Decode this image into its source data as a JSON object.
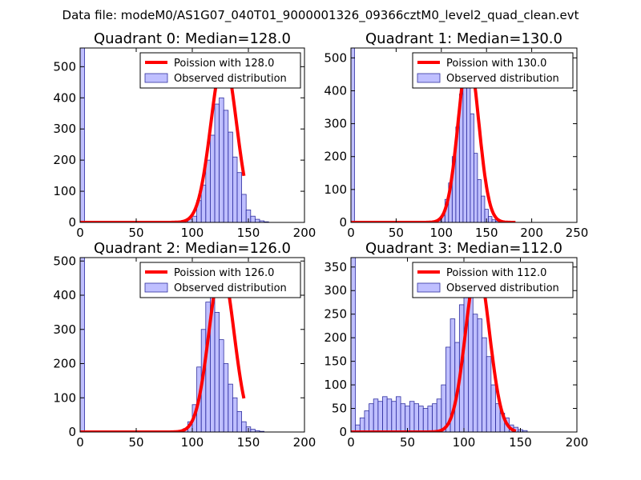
{
  "suptitle": "Data file: modeM0/AS1G07_040T01_9000001326_09366cztM0_level2_quad_clean.evt",
  "colors": {
    "poisson": "#ff0000",
    "bars": "#8080ff",
    "bar_edge": "#3030a0",
    "axis": "#000000"
  },
  "chart_data": [
    {
      "type": "bar",
      "title": "Quadrant 0: Median=128.0",
      "xlim": [
        0,
        200
      ],
      "ylim": [
        0,
        560
      ],
      "xticks": [
        0,
        50,
        100,
        150,
        200
      ],
      "yticks": [
        0,
        100,
        200,
        300,
        400,
        500
      ],
      "bin_width": 4,
      "bins_start": 84,
      "counts": [
        2,
        3,
        5,
        10,
        20,
        70,
        120,
        200,
        280,
        380,
        400,
        360,
        290,
        210,
        160,
        90,
        40,
        20,
        10,
        5,
        2
      ],
      "first_bin_spike": 560,
      "poisson_mean": 128.0,
      "poisson_peak": 530,
      "legend": [
        "Poission with 128.0",
        "Observed distribution"
      ]
    },
    {
      "type": "bar",
      "title": "Quadrant 1: Median=130.0",
      "xlim": [
        0,
        250
      ],
      "ylim": [
        0,
        530
      ],
      "xticks": [
        0,
        50,
        100,
        150,
        200,
        250
      ],
      "yticks": [
        0,
        100,
        200,
        300,
        400,
        500
      ],
      "bin_width": 4,
      "bins_start": 92,
      "counts": [
        2,
        5,
        20,
        70,
        120,
        200,
        290,
        390,
        480,
        430,
        330,
        210,
        130,
        80,
        40,
        18,
        8,
        4,
        2
      ],
      "first_bin_spike": 530,
      "poisson_mean": 130.0,
      "poisson_peak": 505,
      "legend": [
        "Poission with 130.0",
        "Observed distribution"
      ]
    },
    {
      "type": "bar",
      "title": "Quadrant 2: Median=126.0",
      "xlim": [
        0,
        200
      ],
      "ylim": [
        0,
        510
      ],
      "xticks": [
        0,
        50,
        100,
        150,
        200
      ],
      "yticks": [
        0,
        100,
        200,
        300,
        400,
        500
      ],
      "bin_width": 4,
      "bins_start": 84,
      "counts": [
        2,
        4,
        10,
        30,
        80,
        190,
        300,
        380,
        400,
        350,
        270,
        200,
        140,
        100,
        60,
        30,
        15,
        8,
        4,
        2
      ],
      "first_bin_spike": 510,
      "poisson_mean": 126.0,
      "poisson_peak": 480,
      "legend": [
        "Poission with 126.0",
        "Observed distribution"
      ]
    },
    {
      "type": "bar",
      "title": "Quadrant 3: Median=112.0",
      "xlim": [
        0,
        200
      ],
      "ylim": [
        0,
        370
      ],
      "xticks": [
        0,
        50,
        100,
        150,
        200
      ],
      "yticks": [
        0,
        50,
        100,
        150,
        200,
        250,
        300,
        350
      ],
      "bin_width": 4,
      "bins_start": 4,
      "counts": [
        15,
        30,
        45,
        60,
        70,
        65,
        75,
        70,
        65,
        75,
        60,
        55,
        65,
        60,
        55,
        50,
        55,
        60,
        70,
        100,
        180,
        240,
        190,
        270,
        320,
        300,
        250,
        240,
        200,
        160,
        100,
        60,
        40,
        30,
        15,
        10,
        5,
        3
      ],
      "first_bin_spike": 370,
      "poisson_mean": 112.0,
      "poisson_peak": 350,
      "legend": [
        "Poission with 112.0",
        "Observed distribution"
      ]
    }
  ]
}
